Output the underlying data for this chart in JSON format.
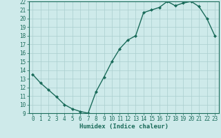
{
  "x": [
    0,
    1,
    2,
    3,
    4,
    5,
    6,
    7,
    8,
    9,
    10,
    11,
    12,
    13,
    14,
    15,
    16,
    17,
    18,
    19,
    20,
    21,
    22,
    23
  ],
  "y": [
    13.5,
    12.5,
    11.7,
    10.9,
    10.0,
    9.5,
    9.2,
    9.0,
    11.5,
    13.2,
    15.0,
    16.5,
    17.5,
    18.0,
    20.7,
    21.0,
    21.3,
    22.0,
    21.5,
    21.8,
    22.0,
    21.4,
    20.0,
    18.0
  ],
  "line_color": "#1a6b5a",
  "marker": "D",
  "marker_size": 2.0,
  "background_color": "#ceeaea",
  "grid_color": "#aacece",
  "xlabel": "Humidex (Indice chaleur)",
  "ylim": [
    9,
    22
  ],
  "xlim": [
    -0.5,
    23.5
  ],
  "yticks": [
    9,
    10,
    11,
    12,
    13,
    14,
    15,
    16,
    17,
    18,
    19,
    20,
    21,
    22
  ],
  "xticks": [
    0,
    1,
    2,
    3,
    4,
    5,
    6,
    7,
    8,
    9,
    10,
    11,
    12,
    13,
    14,
    15,
    16,
    17,
    18,
    19,
    20,
    21,
    22,
    23
  ],
  "tick_fontsize": 5.5,
  "xlabel_fontsize": 6.5,
  "xlabel_fontweight": "bold",
  "linewidth": 1.0
}
